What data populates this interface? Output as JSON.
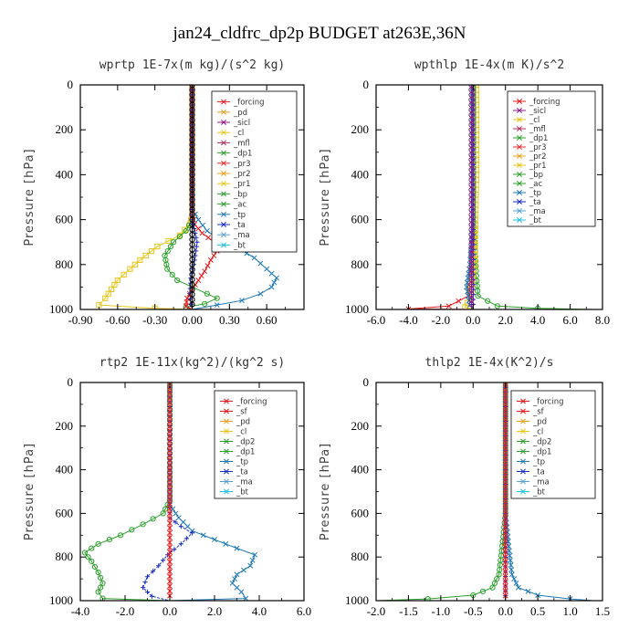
{
  "title": "jan24_cldfrc_dp2p  BUDGET at263E,36N",
  "chart_data": [
    {
      "type": "line",
      "title": "wprtp  1E-7x(m kg)/(s^2 kg)",
      "ylabel": "Pressure [hPa]",
      "xlim": [
        -0.9,
        0.9
      ],
      "ylim": [
        1000,
        0
      ],
      "xticks": [
        "-0.90",
        "-0.60",
        "-0.30",
        "0.00",
        "0.30",
        "0.60"
      ],
      "xtick_values": [
        -0.9,
        -0.6,
        -0.3,
        0,
        0.3,
        0.6
      ],
      "yticks": [
        "0",
        "200",
        "400",
        "600",
        "800",
        "1000"
      ],
      "ytick_values": [
        0,
        200,
        400,
        600,
        800,
        1000
      ],
      "legend": [
        "_forcing",
        "_pd",
        "_sicl",
        "_cl",
        "_mfl",
        "_dp1",
        "_pr3",
        "_pr2",
        "_pr1",
        "_bp",
        "_ac",
        "_tp",
        "_ta",
        "_ma",
        "_bt"
      ],
      "series": [
        {
          "name": "_tp",
          "color": "#1f78b4",
          "marker": "x",
          "points": [
            [
              0,
              0
            ],
            [
              0,
              550
            ],
            [
              0.05,
              600
            ],
            [
              0.12,
              650
            ],
            [
              0.25,
              700
            ],
            [
              0.38,
              730
            ],
            [
              0.5,
              770
            ],
            [
              0.6,
              820
            ],
            [
              0.68,
              860
            ],
            [
              0.64,
              900
            ],
            [
              0.55,
              930
            ],
            [
              0.4,
              960
            ],
            [
              0.2,
              980
            ],
            [
              0,
              1000
            ]
          ]
        },
        {
          "name": "_pr1",
          "color": "#e6c619",
          "marker": "s",
          "points": [
            [
              0,
              0
            ],
            [
              0,
              580
            ],
            [
              -0.02,
              620
            ],
            [
              -0.1,
              670
            ],
            [
              -0.28,
              720
            ],
            [
              -0.42,
              780
            ],
            [
              -0.5,
              820
            ],
            [
              -0.6,
              870
            ],
            [
              -0.65,
              910
            ],
            [
              -0.7,
              950
            ],
            [
              -0.75,
              980
            ],
            [
              -0.3,
              995
            ],
            [
              0,
              1000
            ]
          ]
        },
        {
          "name": "_ac",
          "color": "#2ca02c",
          "marker": "o",
          "points": [
            [
              0,
              0
            ],
            [
              0,
              600
            ],
            [
              -0.05,
              650
            ],
            [
              -0.15,
              700
            ],
            [
              -0.22,
              760
            ],
            [
              -0.2,
              820
            ],
            [
              -0.12,
              870
            ],
            [
              0,
              900
            ],
            [
              0.12,
              930
            ],
            [
              0.2,
              950
            ],
            [
              0.1,
              975
            ],
            [
              -0.05,
              990
            ],
            [
              0,
              1000
            ]
          ]
        },
        {
          "name": "_dp1",
          "color": "#e31a1c",
          "marker": "x",
          "points": [
            [
              0,
              0
            ],
            [
              0,
              580
            ],
            [
              0.02,
              620
            ],
            [
              0.08,
              660
            ],
            [
              0.18,
              700
            ],
            [
              0.2,
              740
            ],
            [
              0.15,
              780
            ],
            [
              0.1,
              830
            ],
            [
              0.05,
              870
            ],
            [
              0,
              910
            ],
            [
              -0.04,
              950
            ],
            [
              -0.05,
              985
            ],
            [
              0,
              1000
            ]
          ]
        },
        {
          "name": "_ta",
          "color": "#1a2fbf",
          "marker": "+",
          "points": [
            [
              0,
              0
            ],
            [
              0,
              600
            ],
            [
              0.04,
              700
            ],
            [
              0.02,
              780
            ],
            [
              -0.01,
              860
            ],
            [
              -0.02,
              930
            ],
            [
              0,
              1000
            ]
          ]
        },
        {
          "name": "_pd",
          "color": "#b070c0",
          "marker": "o",
          "points": [
            [
              0,
              0
            ],
            [
              0,
              1000
            ]
          ]
        },
        {
          "name": "_forcing",
          "color": "#000000",
          "marker": "o",
          "points": [
            [
              0,
              0
            ],
            [
              0,
              1000
            ]
          ]
        }
      ]
    },
    {
      "type": "line",
      "title": "wpthlp  1E-4x(m K)/s^2",
      "ylabel": "Pressure [hPa]",
      "xlim": [
        -6,
        8
      ],
      "ylim": [
        1000,
        0
      ],
      "xticks": [
        "-6.0",
        "-4.0",
        "-2.0",
        "0.0",
        "2.0",
        "4.0",
        "6.0",
        "8.0"
      ],
      "xtick_values": [
        -6,
        -4,
        -2,
        0,
        2,
        4,
        6,
        8
      ],
      "yticks": [
        "0",
        "200",
        "400",
        "600",
        "800",
        "1000"
      ],
      "ytick_values": [
        0,
        200,
        400,
        600,
        800,
        1000
      ],
      "legend": [
        "_forcing",
        "_sicl",
        "_cl",
        "_mfl",
        "_dp1",
        "_pr3",
        "_pr2",
        "_pr1",
        "_bp",
        "_ac",
        "_tp",
        "_ta",
        "_ma",
        "_bt"
      ],
      "series": [
        {
          "name": "_ac",
          "color": "#2ca02c",
          "marker": "o",
          "points": [
            [
              0,
              0
            ],
            [
              0,
              500
            ],
            [
              0.1,
              700
            ],
            [
              0.2,
              850
            ],
            [
              0.3,
              940
            ],
            [
              1.5,
              985
            ],
            [
              4,
              995
            ],
            [
              7.5,
              1000
            ]
          ]
        },
        {
          "name": "_dp1",
          "color": "#e31a1c",
          "marker": "x",
          "points": [
            [
              0,
              0
            ],
            [
              0,
              600
            ],
            [
              -0.1,
              800
            ],
            [
              -0.3,
              940
            ],
            [
              -1.5,
              985
            ],
            [
              -4,
              998
            ],
            [
              0,
              1000
            ]
          ]
        },
        {
          "name": "_pr1",
          "color": "#e6c619",
          "marker": "s",
          "points": [
            [
              0.2,
              0
            ],
            [
              0.2,
              400
            ],
            [
              0.1,
              800
            ],
            [
              -0.2,
              950
            ],
            [
              -0.5,
              990
            ],
            [
              0,
              1000
            ]
          ]
        },
        {
          "name": "_tp",
          "color": "#1f78b4",
          "marker": "x",
          "points": [
            [
              0,
              0
            ],
            [
              0,
              600
            ],
            [
              -0.2,
              800
            ],
            [
              -0.4,
              900
            ],
            [
              -0.2,
              980
            ],
            [
              0,
              1000
            ]
          ]
        },
        {
          "name": "_ta",
          "color": "#1a2fbf",
          "marker": "+",
          "points": [
            [
              0,
              0
            ],
            [
              0,
              1000
            ]
          ]
        },
        {
          "name": "_sicl",
          "color": "#8b1a8b",
          "marker": "o",
          "points": [
            [
              -0.1,
              0
            ],
            [
              -0.1,
              1000
            ]
          ]
        }
      ]
    },
    {
      "type": "line",
      "title": "rtp2  1E-11x(kg^2)/(kg^2 s)",
      "ylabel": "Pressure [hPa]",
      "xlim": [
        -4,
        6
      ],
      "ylim": [
        1000,
        0
      ],
      "xticks": [
        "-4.0",
        "-2.0",
        "0.0",
        "2.0",
        "4.0",
        "6.0"
      ],
      "xtick_values": [
        -4,
        -2,
        0,
        2,
        4,
        6
      ],
      "yticks": [
        "0",
        "200",
        "400",
        "600",
        "800",
        "1000"
      ],
      "ytick_values": [
        0,
        200,
        400,
        600,
        800,
        1000
      ],
      "legend": [
        "_forcing",
        "_sf",
        "_pd",
        "_cl",
        "_dp2",
        "_dp1",
        "_tp",
        "_ta",
        "_ma",
        "_bt"
      ],
      "series": [
        {
          "name": "_dp1",
          "color": "#2ca02c",
          "marker": "o",
          "points": [
            [
              0,
              0
            ],
            [
              0,
              540
            ],
            [
              -0.3,
              600
            ],
            [
              -1.2,
              650
            ],
            [
              -2.2,
              700
            ],
            [
              -3.2,
              740
            ],
            [
              -3.8,
              780
            ],
            [
              -3.5,
              820
            ],
            [
              -3.2,
              870
            ],
            [
              -3.0,
              920
            ],
            [
              -3.2,
              960
            ],
            [
              -3.0,
              990
            ],
            [
              0,
              1000
            ]
          ]
        },
        {
          "name": "_tp",
          "color": "#1f78b4",
          "marker": "x",
          "points": [
            [
              0,
              0
            ],
            [
              0,
              560
            ],
            [
              0.4,
              620
            ],
            [
              1.0,
              680
            ],
            [
              2.0,
              720
            ],
            [
              3.0,
              760
            ],
            [
              3.8,
              790
            ],
            [
              3.6,
              840
            ],
            [
              3.0,
              880
            ],
            [
              2.8,
              920
            ],
            [
              3.2,
              960
            ],
            [
              3.4,
              990
            ],
            [
              0,
              1000
            ]
          ]
        },
        {
          "name": "_ta",
          "color": "#1a2fbf",
          "marker": "+",
          "points": [
            [
              0,
              0
            ],
            [
              0,
              620
            ],
            [
              0.5,
              660
            ],
            [
              1.0,
              690
            ],
            [
              0.5,
              740
            ],
            [
              -0.1,
              790
            ],
            [
              -0.5,
              840
            ],
            [
              -1.0,
              890
            ],
            [
              -1.2,
              940
            ],
            [
              -0.8,
              980
            ],
            [
              0,
              1000
            ]
          ]
        },
        {
          "name": "_forcing",
          "color": "#e31a1c",
          "marker": "x",
          "points": [
            [
              0,
              0
            ],
            [
              0,
              1000
            ]
          ]
        }
      ]
    },
    {
      "type": "line",
      "title": "thlp2  1E-4x(K^2)/s",
      "ylabel": "Pressure [hPa]",
      "xlim": [
        -2,
        1.5
      ],
      "ylim": [
        1000,
        0
      ],
      "xticks": [
        "-2.0",
        "-1.5",
        "-1.0",
        "-0.5",
        "0.0",
        "0.5",
        "1.0",
        "1.5"
      ],
      "xtick_values": [
        -2,
        -1.5,
        -1,
        -0.5,
        0,
        0.5,
        1,
        1.5
      ],
      "yticks": [
        "0",
        "200",
        "400",
        "600",
        "800",
        "1000"
      ],
      "ytick_values": [
        0,
        200,
        400,
        600,
        800,
        1000
      ],
      "legend": [
        "_forcing",
        "_sf",
        "_pd",
        "_cl",
        "_dp2",
        "_dp1",
        "_tp",
        "_ta",
        "_ma",
        "_bt"
      ],
      "series": [
        {
          "name": "_dp1",
          "color": "#2ca02c",
          "marker": "o",
          "points": [
            [
              0,
              0
            ],
            [
              0,
              600
            ],
            [
              -0.05,
              750
            ],
            [
              -0.1,
              880
            ],
            [
              -0.2,
              940
            ],
            [
              -0.5,
              975
            ],
            [
              -1.2,
              992
            ],
            [
              -2.0,
              1000
            ]
          ]
        },
        {
          "name": "_tp",
          "color": "#1f78b4",
          "marker": "x",
          "points": [
            [
              0,
              0
            ],
            [
              0,
              600
            ],
            [
              0.05,
              750
            ],
            [
              0.1,
              880
            ],
            [
              0.2,
              940
            ],
            [
              0.5,
              975
            ],
            [
              1.0,
              992
            ],
            [
              1.35,
              1000
            ]
          ]
        },
        {
          "name": "_ta",
          "color": "#1a2fbf",
          "marker": "+",
          "points": [
            [
              0,
              0
            ],
            [
              0,
              1000
            ]
          ]
        },
        {
          "name": "_forcing",
          "color": "#e31a1c",
          "marker": "x",
          "points": [
            [
              0,
              0
            ],
            [
              0,
              1000
            ]
          ]
        }
      ]
    }
  ],
  "legend_colors": {
    "_forcing": "#e31a1c",
    "_sf": "#e31a1c",
    "_pd": "#e6a020",
    "_cl": "#e6c619",
    "_dp2": "#2ca02c",
    "_dp1": "#2ca02c",
    "_tp": "#1f78b4",
    "_ta": "#1a2fbf",
    "_ma": "#5aa0d0",
    "_bt": "#20c0e0",
    "_sicl": "#8b1a8b",
    "_mfl": "#b03060",
    "_pr3": "#e03030",
    "_pr2": "#e6a020",
    "_pr1": "#e6c619",
    "_bp": "#30a030",
    "_ac": "#2ca02c"
  }
}
